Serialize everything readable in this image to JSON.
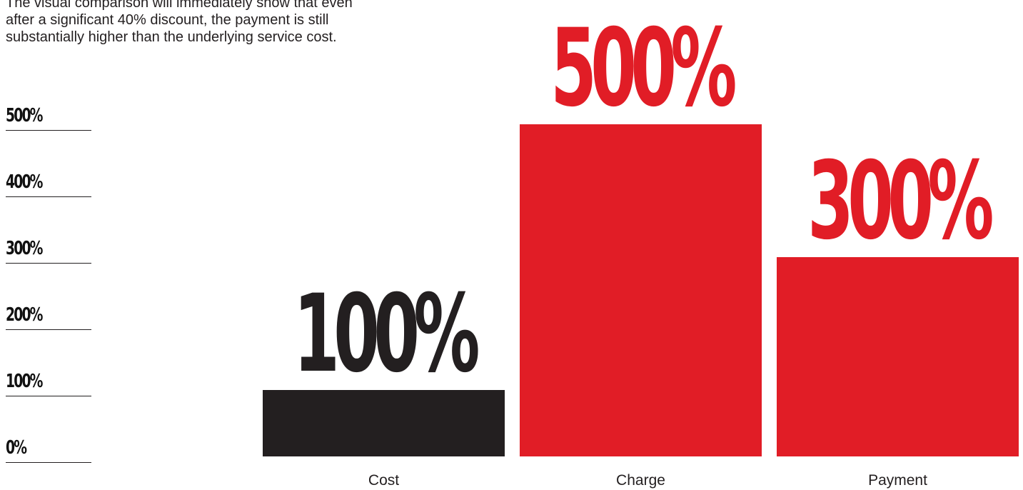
{
  "description": "The visual comparison will immediately show that even after a significant 40% discount, the payment is still substantially higher than the underlying service cost.",
  "colors": {
    "cost": "#231f20",
    "accent": "#e11d26",
    "text": "#231f20"
  },
  "chart_data": {
    "type": "bar",
    "categories": [
      "Cost",
      "Charge",
      "Payment"
    ],
    "values": [
      100,
      500,
      300
    ],
    "value_labels": [
      "100%",
      "500%",
      "300%"
    ],
    "bar_colors": [
      "#231f20",
      "#e11d26",
      "#e11d26"
    ],
    "ylim": [
      0,
      500
    ],
    "yticks": [
      {
        "value": 500,
        "label": "500%"
      },
      {
        "value": 400,
        "label": "400%"
      },
      {
        "value": 300,
        "label": "300%"
      },
      {
        "value": 200,
        "label": "200%"
      },
      {
        "value": 100,
        "label": "100%"
      },
      {
        "value": 0,
        "label": "0%"
      }
    ],
    "title": "",
    "xlabel": "",
    "ylabel": "",
    "grid": false,
    "legend": "none"
  }
}
